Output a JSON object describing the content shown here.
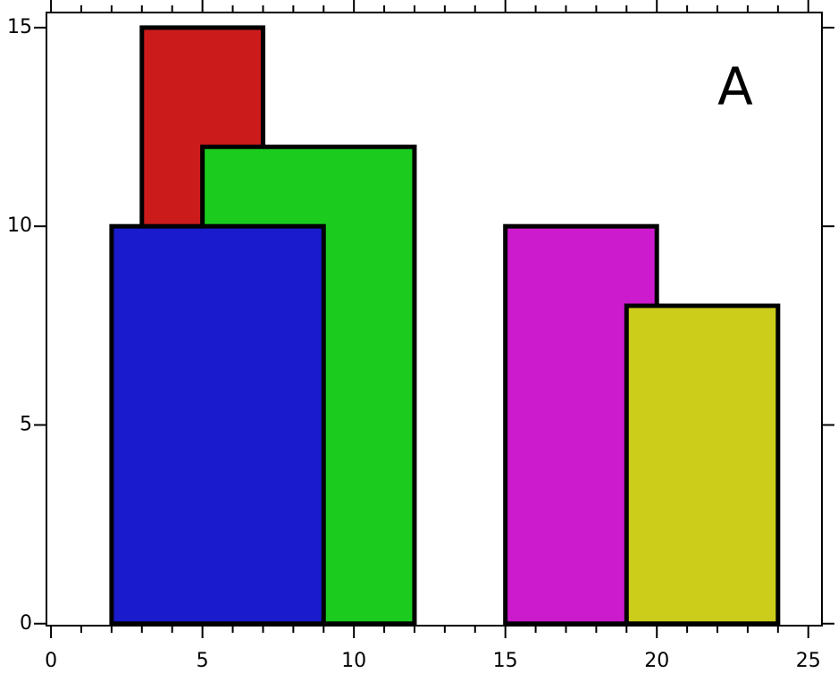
{
  "chart_data": {
    "type": "rect",
    "annotation": "A",
    "x_start": [
      3,
      5,
      2,
      15,
      19
    ],
    "x_end": [
      7,
      12,
      9,
      20,
      24
    ],
    "values": [
      15,
      12,
      10,
      10,
      8
    ],
    "colors": [
      "#cc1b1b",
      "#1bcc1f",
      "#191bcc",
      "#cc1bcc",
      "#cccc1b"
    ],
    "xlim": [
      -0.15,
      25.45
    ],
    "ylim": [
      -0.05,
      15.38
    ],
    "xticks": [
      0,
      5,
      10,
      15,
      20,
      25
    ],
    "xminorticks": [
      1,
      2,
      3,
      4,
      6,
      7,
      8,
      9,
      11,
      12,
      13,
      14,
      16,
      17,
      18,
      19,
      21,
      22,
      23,
      24
    ],
    "yticks": [
      0,
      5,
      10,
      15
    ]
  }
}
